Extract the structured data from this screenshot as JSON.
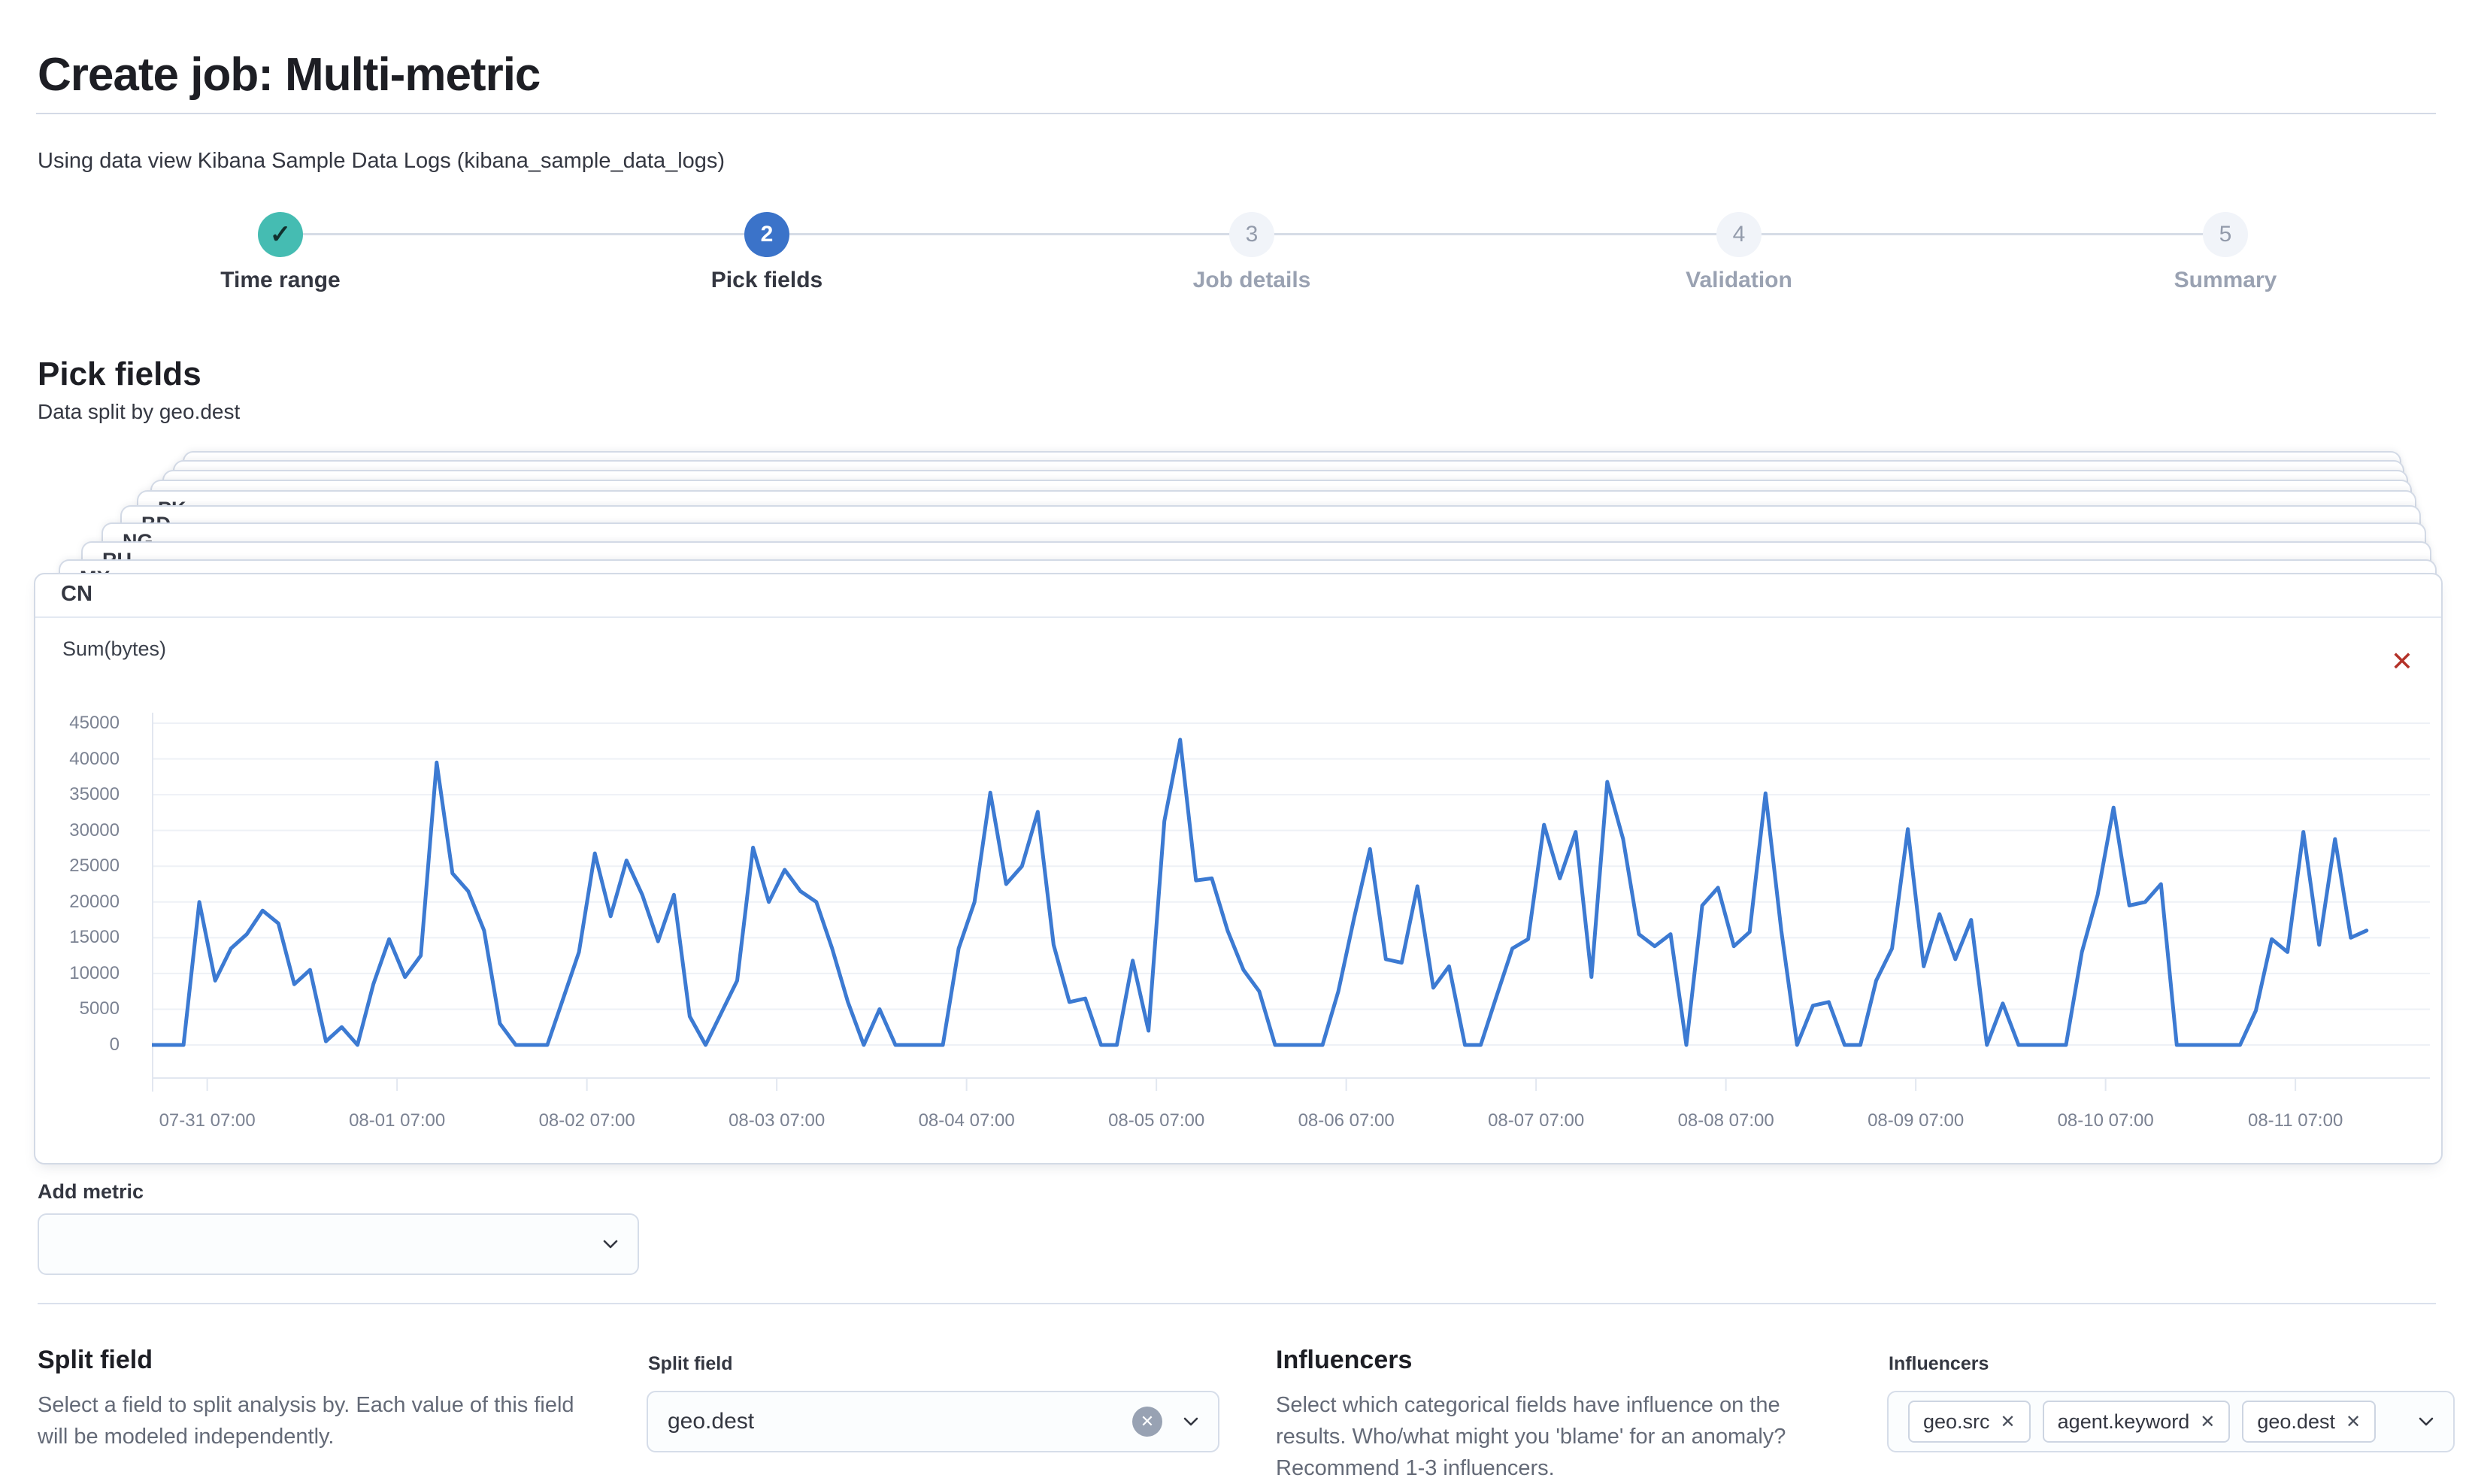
{
  "header": {
    "title": "Create job: Multi-metric",
    "data_view_note": "Using data view Kibana Sample Data Logs (kibana_sample_data_logs)"
  },
  "steps": [
    {
      "label": "Time range",
      "indicator": "✓",
      "state": "complete"
    },
    {
      "label": "Pick fields",
      "indicator": "2",
      "state": "active"
    },
    {
      "label": "Job details",
      "indicator": "3",
      "state": "incomplete"
    },
    {
      "label": "Validation",
      "indicator": "4",
      "state": "incomplete"
    },
    {
      "label": "Summary",
      "indicator": "5",
      "state": "incomplete"
    }
  ],
  "pick_fields": {
    "heading": "Pick fields",
    "split_note": "Data split by geo.dest"
  },
  "stack": {
    "hidden_card_count": 4,
    "labels_back_to_front": [
      "PK",
      "BD",
      "NG",
      "RU",
      "MX"
    ]
  },
  "front_card": {
    "title": "CN",
    "metric_label": "Sum(bytes)",
    "close_icon": "✕"
  },
  "add_metric": {
    "label": "Add metric",
    "value": ""
  },
  "split_field": {
    "heading": "Split field",
    "description_lines": [
      "Select a field to split analysis by. Each value of this field",
      "will be modeled independently."
    ],
    "field_label": "Split field",
    "value": "geo.dest",
    "clear_icon": "✕"
  },
  "influencers": {
    "heading": "Influencers",
    "description_lines": [
      "Select which categorical fields have influence on the",
      "results. Who/what might you 'blame' for an anomaly?",
      "Recommend 1-3 influencers."
    ],
    "field_label": "Influencers",
    "badges": [
      {
        "label": "geo.src",
        "remove_icon": "✕"
      },
      {
        "label": "agent.keyword",
        "remove_icon": "✕"
      },
      {
        "label": "geo.dest",
        "remove_icon": "✕"
      }
    ]
  },
  "colors": {
    "accent_teal": "#45bcb2",
    "accent_blue": "#3b73c9",
    "danger_red": "#b43229",
    "line_blue": "#3c7ad2",
    "grid_gray": "#eef1f6",
    "axis_gray": "#e2e7f0"
  },
  "chart_data": {
    "type": "line",
    "title": "CN — Sum(bytes)",
    "ylabel": "Sum(bytes)",
    "xlabel": "",
    "ylim": [
      0,
      45000
    ],
    "y_ticks": [
      45000,
      40000,
      35000,
      30000,
      25000,
      20000,
      15000,
      10000,
      5000,
      0
    ],
    "grid": true,
    "legend": false,
    "line_color": "#3c7ad2",
    "x_start": "07-31 00:00",
    "x_step_hours": 2,
    "x_axis_span_hours": 288,
    "x_tick_hours": [
      7,
      31,
      55,
      79,
      103,
      127,
      151,
      175,
      199,
      223,
      247,
      271
    ],
    "x_tick_labels": [
      "07-31 07:00",
      "08-01 07:00",
      "08-02 07:00",
      "08-03 07:00",
      "08-04 07:00",
      "08-05 07:00",
      "08-06 07:00",
      "08-07 07:00",
      "08-08 07:00",
      "08-09 07:00",
      "08-10 07:00",
      "08-11 07:00"
    ],
    "series": [
      {
        "name": "Sum(bytes)",
        "values": [
          0,
          0,
          0,
          20000,
          9000,
          13500,
          15500,
          18800,
          17000,
          8500,
          10500,
          500,
          2500,
          0,
          8500,
          14800,
          9500,
          12500,
          39500,
          24000,
          21500,
          16000,
          3000,
          0,
          0,
          0,
          6500,
          13000,
          26800,
          18000,
          25800,
          21000,
          14500,
          21000,
          4000,
          0,
          4500,
          9000,
          27600,
          20000,
          24500,
          21500,
          20000,
          13500,
          6000,
          0,
          5000,
          0,
          0,
          0,
          0,
          13500,
          20000,
          35300,
          22500,
          25000,
          32600,
          14000,
          6000,
          6500,
          0,
          0,
          11800,
          2000,
          31300,
          42700,
          23000,
          23300,
          16000,
          10500,
          7500,
          0,
          0,
          0,
          0,
          7500,
          17800,
          27400,
          12000,
          11500,
          22200,
          8000,
          11000,
          0,
          0,
          6800,
          13500,
          14800,
          30800,
          23300,
          29800,
          9500,
          36800,
          28800,
          15500,
          13800,
          15500,
          0,
          19500,
          22000,
          13800,
          15800,
          35200,
          16000,
          0,
          5500,
          6000,
          0,
          0,
          9000,
          13500,
          30200,
          11000,
          18300,
          12000,
          17500,
          0,
          5800,
          0,
          0,
          0,
          0,
          13000,
          21000,
          33200,
          19500,
          20000,
          22500,
          0,
          0,
          0,
          0,
          0,
          4800,
          14800,
          13000,
          29800,
          14000,
          28800,
          15000,
          16000
        ]
      }
    ]
  }
}
